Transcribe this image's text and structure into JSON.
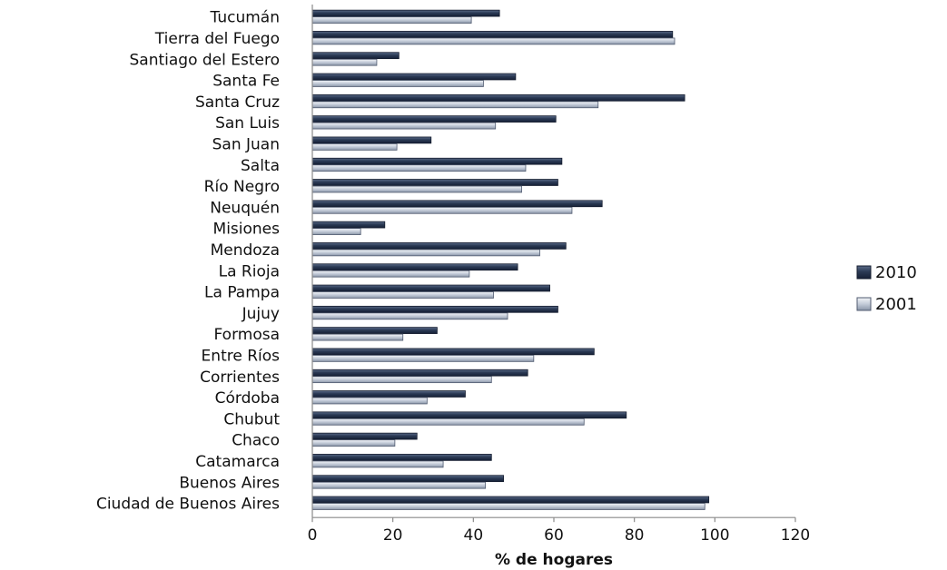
{
  "chart_data": {
    "type": "bar",
    "orientation": "horizontal",
    "categories": [
      "Tucumán",
      "Tierra del Fuego",
      "Santiago del Estero",
      "Santa Fe",
      "Santa Cruz",
      "San Luis",
      "San Juan",
      "Salta",
      "Río Negro",
      "Neuquén",
      "Misiones",
      "Mendoza",
      "La Rioja",
      "La Pampa",
      "Jujuy",
      "Formosa",
      "Entre Ríos",
      "Corrientes",
      "Córdoba",
      "Chubut",
      "Chaco",
      "Catamarca",
      "Buenos Aires",
      "Ciudad de Buenos Aires"
    ],
    "series": [
      {
        "name": "2010",
        "color": "#2b3a55",
        "values": [
          46.5,
          89.5,
          21.5,
          50.5,
          92.5,
          60.5,
          29.5,
          62,
          61,
          72,
          18,
          63,
          51,
          59,
          61,
          31,
          70,
          53.5,
          38,
          78,
          26,
          44.5,
          47.5,
          98.5
        ]
      },
      {
        "name": "2001",
        "color": "#b8c1cf",
        "values": [
          39.5,
          90,
          16,
          42.5,
          71,
          45.5,
          21,
          53,
          52,
          64.5,
          12,
          56.5,
          39,
          45,
          48.5,
          22.5,
          55,
          44.5,
          28.5,
          67.5,
          20.5,
          32.5,
          43,
          97.5
        ]
      }
    ],
    "xlabel": "% de hogares",
    "xlim": [
      0,
      120
    ],
    "xticks": [
      0,
      20,
      40,
      60,
      80,
      100,
      120
    ],
    "grid": false,
    "legend_position": "right"
  }
}
